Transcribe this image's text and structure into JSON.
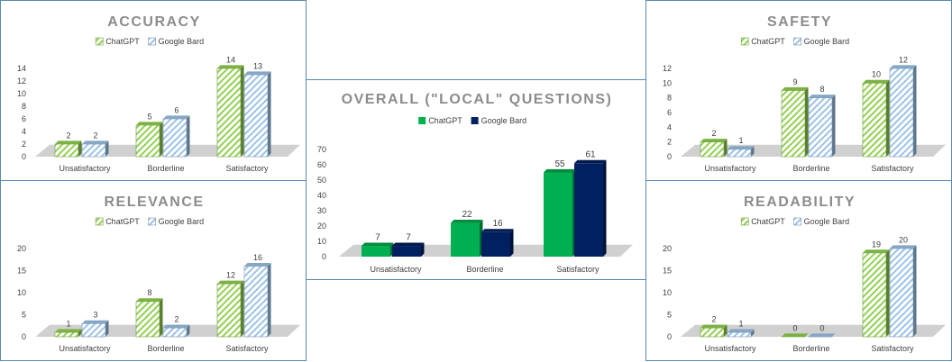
{
  "colors": {
    "chatgpt_light": "#92d050",
    "bard_light": "#9dc3e6",
    "chatgpt_solid": "#00b050",
    "bard_solid": "#002060",
    "floor": "#d0d0d0",
    "title": "#8c8c8c"
  },
  "chart_data": [
    {
      "id": "accuracy",
      "type": "bar",
      "title": "ACCURACY",
      "categories": [
        "Unsatisfactory",
        "Borderline",
        "Satisfactory"
      ],
      "series": [
        {
          "name": "ChatGPT",
          "values": [
            2,
            5,
            14
          ]
        },
        {
          "name": "Google Bard",
          "values": [
            2,
            6,
            13
          ]
        }
      ],
      "ylim": [
        0,
        14
      ],
      "yticks": [
        0,
        2,
        4,
        6,
        8,
        10,
        12,
        14
      ],
      "legend": "top",
      "style": "hatched"
    },
    {
      "id": "relevance",
      "type": "bar",
      "title": "RELEVANCE",
      "categories": [
        "Unsatisfactory",
        "Borderline",
        "Satisfactory"
      ],
      "series": [
        {
          "name": "ChatGPT",
          "values": [
            1,
            8,
            12
          ]
        },
        {
          "name": "Google Bard",
          "values": [
            3,
            2,
            16
          ]
        }
      ],
      "ylim": [
        0,
        20
      ],
      "yticks": [
        0,
        5,
        10,
        15,
        20
      ],
      "legend": "top",
      "style": "hatched"
    },
    {
      "id": "overall",
      "type": "bar",
      "title": "OVERALL (\"LOCAL\" QUESTIONS)",
      "categories": [
        "Unsatisfactory",
        "Borderline",
        "Satisfactory"
      ],
      "series": [
        {
          "name": "ChatGPT",
          "values": [
            7,
            22,
            55
          ]
        },
        {
          "name": "Google Bard",
          "values": [
            7,
            16,
            61
          ]
        }
      ],
      "ylim": [
        0,
        70
      ],
      "yticks": [
        0,
        10,
        20,
        30,
        40,
        50,
        60,
        70
      ],
      "legend": "top",
      "style": "solid"
    },
    {
      "id": "safety",
      "type": "bar",
      "title": "SAFETY",
      "categories": [
        "Unsatisfactory",
        "Borderline",
        "Satisfactory"
      ],
      "series": [
        {
          "name": "ChatGPT",
          "values": [
            2,
            9,
            10
          ]
        },
        {
          "name": "Google Bard",
          "values": [
            1,
            8,
            12
          ]
        }
      ],
      "ylim": [
        0,
        12
      ],
      "yticks": [
        0,
        2,
        4,
        6,
        8,
        10,
        12
      ],
      "legend": "top",
      "style": "hatched"
    },
    {
      "id": "readability",
      "type": "bar",
      "title": "READABILITY",
      "categories": [
        "Unsatisfactory",
        "Borderline",
        "Satisfactory"
      ],
      "series": [
        {
          "name": "ChatGPT",
          "values": [
            2,
            0,
            19
          ]
        },
        {
          "name": "Google Bard",
          "values": [
            1,
            0,
            20
          ]
        }
      ],
      "ylim": [
        0,
        20
      ],
      "yticks": [
        0,
        5,
        10,
        15,
        20
      ],
      "legend": "top",
      "style": "hatched"
    }
  ]
}
